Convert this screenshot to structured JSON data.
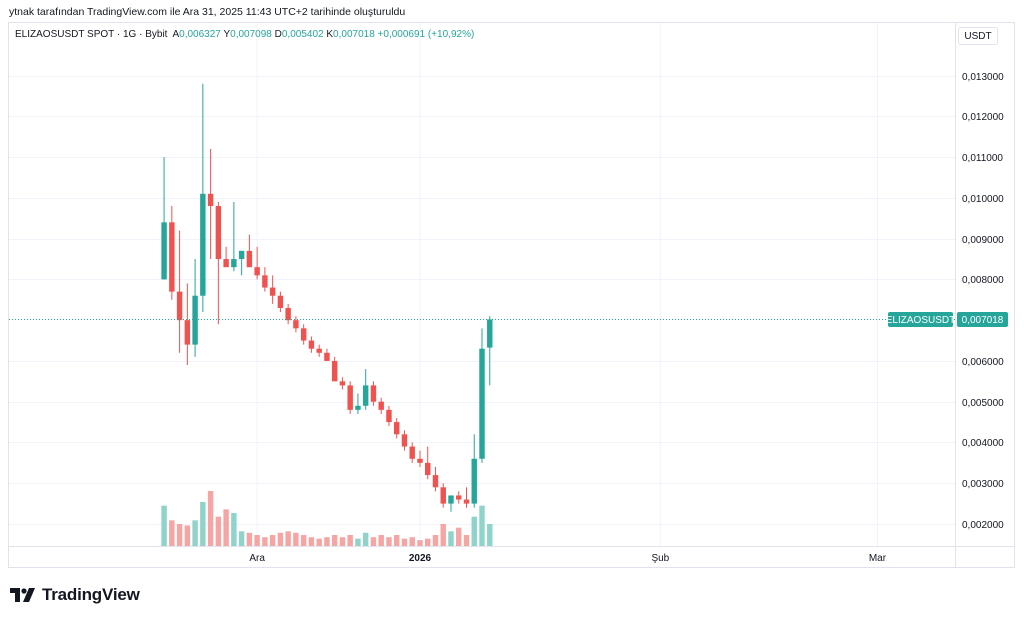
{
  "caption": "ytnak tarafından TradingView.com ile Ara 31, 2025 11:43 UTC+2 tarihinde oluşturuldu",
  "legend": {
    "symbol": "ELIZAOSUSDT SPOT · 1G · Bybit",
    "open_label": "A",
    "open": "0,006327",
    "high_label": "Y",
    "high": "0,007098",
    "low_label": "D",
    "low": "0,005402",
    "close_label": "K",
    "close": "0,007018",
    "change": "+0,000691 (+10,92%)"
  },
  "currency_button": "USDT",
  "price_tag": {
    "symbol": "ELIZAOSUSDT",
    "price": "0,007018",
    "value": 0.007018
  },
  "brand": "TradingView",
  "colors": {
    "up": "#26a69a",
    "down": "#ef5350",
    "up_vol": "#8fd3cb",
    "down_vol": "#f5a6a4",
    "tag": "#26a69a"
  },
  "chart_data": {
    "type": "candlestick",
    "title": "ELIZAOSUSDT SPOT · 1G · Bybit",
    "y_ticks": [
      "0,013000",
      "0,012000",
      "0,011000",
      "0,010000",
      "0,009000",
      "0,008000",
      "0,006000",
      "0,005000",
      "0,004000",
      "0,003000",
      "0,002000"
    ],
    "y_tick_values": [
      0.013,
      0.012,
      0.011,
      0.01,
      0.009,
      0.008,
      0.006,
      0.005,
      0.004,
      0.003,
      0.002
    ],
    "ylim": [
      0.00146,
      0.01429
    ],
    "x_ticks": [
      {
        "label": "Ara",
        "index": 12,
        "bold": false
      },
      {
        "label": "2026",
        "index": 33,
        "bold": true
      },
      {
        "label": "Şub",
        "index": 64,
        "bold": false
      },
      {
        "label": "Mar",
        "index": 92,
        "bold": false
      }
    ],
    "x_index_range": [
      -20,
      102
    ],
    "candles": [
      [
        0.008,
        0.011,
        0.008,
        0.0094,
        0.00055
      ],
      [
        0.0094,
        0.0098,
        0.0075,
        0.0077,
        0.00035
      ],
      [
        0.0077,
        0.0092,
        0.0062,
        0.007,
        0.0003
      ],
      [
        0.007,
        0.0079,
        0.0059,
        0.0064,
        0.00028
      ],
      [
        0.0064,
        0.0085,
        0.0061,
        0.0076,
        0.00035
      ],
      [
        0.0076,
        0.0128,
        0.0072,
        0.0101,
        0.0006
      ],
      [
        0.0101,
        0.0112,
        0.0085,
        0.0098,
        0.00075
      ],
      [
        0.0098,
        0.0099,
        0.0069,
        0.0085,
        0.0004
      ],
      [
        0.0085,
        0.0088,
        0.0083,
        0.0083,
        0.0005
      ],
      [
        0.0083,
        0.0099,
        0.0082,
        0.0085,
        0.00045
      ],
      [
        0.0085,
        0.0087,
        0.0081,
        0.0087,
        0.0002
      ],
      [
        0.0087,
        0.0091,
        0.0083,
        0.0083,
        0.00018
      ],
      [
        0.0083,
        0.0088,
        0.008,
        0.0081,
        0.00015
      ],
      [
        0.0081,
        0.0083,
        0.0077,
        0.0078,
        0.00012
      ],
      [
        0.0078,
        0.0081,
        0.0074,
        0.0076,
        0.00015
      ],
      [
        0.0076,
        0.0077,
        0.0072,
        0.0073,
        0.00018
      ],
      [
        0.0073,
        0.0074,
        0.0069,
        0.007,
        0.0002
      ],
      [
        0.007,
        0.0071,
        0.0067,
        0.0068,
        0.00018
      ],
      [
        0.0068,
        0.0069,
        0.0064,
        0.0065,
        0.00015
      ],
      [
        0.0065,
        0.0066,
        0.0062,
        0.0063,
        0.00012
      ],
      [
        0.0063,
        0.0064,
        0.0061,
        0.0062,
        0.0001
      ],
      [
        0.0062,
        0.0063,
        0.006,
        0.006,
        0.00012
      ],
      [
        0.006,
        0.0061,
        0.0055,
        0.0055,
        0.00015
      ],
      [
        0.0055,
        0.0056,
        0.0053,
        0.0054,
        0.00012
      ],
      [
        0.0054,
        0.0055,
        0.0047,
        0.0048,
        0.00015
      ],
      [
        0.0048,
        0.0052,
        0.0047,
        0.0049,
        0.0001
      ],
      [
        0.0049,
        0.0058,
        0.0048,
        0.0054,
        0.00018
      ],
      [
        0.0054,
        0.0055,
        0.0049,
        0.005,
        0.00012
      ],
      [
        0.005,
        0.0051,
        0.0047,
        0.0048,
        0.00015
      ],
      [
        0.0048,
        0.0049,
        0.0044,
        0.0045,
        0.00012
      ],
      [
        0.0045,
        0.0046,
        0.0041,
        0.0042,
        0.00015
      ],
      [
        0.0042,
        0.0043,
        0.0038,
        0.0039,
        0.0001
      ],
      [
        0.0039,
        0.004,
        0.0035,
        0.0036,
        0.00012
      ],
      [
        0.0036,
        0.0038,
        0.0034,
        0.0035,
        8e-05
      ],
      [
        0.0035,
        0.0039,
        0.0031,
        0.0032,
        0.0001
      ],
      [
        0.0032,
        0.0034,
        0.0028,
        0.0029,
        0.00015
      ],
      [
        0.0029,
        0.003,
        0.0024,
        0.0025,
        0.0003
      ],
      [
        0.0025,
        0.0027,
        0.0023,
        0.0027,
        0.0002
      ],
      [
        0.0027,
        0.0028,
        0.0025,
        0.0026,
        0.00025
      ],
      [
        0.0026,
        0.0029,
        0.0024,
        0.0025,
        0.00015
      ],
      [
        0.0025,
        0.0042,
        0.0024,
        0.0036,
        0.0004
      ],
      [
        0.0036,
        0.0068,
        0.0035,
        0.0063,
        0.00055
      ],
      [
        0.006327,
        0.007098,
        0.005402,
        0.007018,
        0.0003
      ]
    ]
  }
}
